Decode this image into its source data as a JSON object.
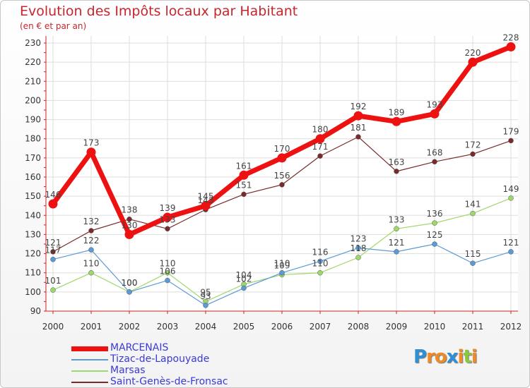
{
  "title": "Evolution des Impôts locaux par Habitant",
  "subtitle": "(en € et par an)",
  "logo": {
    "letters": [
      "P",
      "r",
      "o",
      "x",
      "i",
      "t",
      "i"
    ],
    "colors": [
      "#2d8fd5",
      "#f08a24",
      "#f08a24",
      "#2d8fd5",
      "#f08a24",
      "#8dc63f",
      "#f08a24"
    ]
  },
  "chart_data": {
    "type": "line",
    "x": [
      "2000",
      "2001",
      "2002",
      "2003",
      "2004",
      "2005",
      "2006",
      "2007",
      "2008",
      "2009",
      "2010",
      "2011",
      "2012"
    ],
    "ylim": [
      90,
      230
    ],
    "yticks": [
      90,
      100,
      110,
      120,
      130,
      140,
      150,
      160,
      170,
      180,
      190,
      200,
      210,
      220,
      230
    ],
    "grid": true,
    "legend_position": "bottom-left",
    "series": [
      {
        "name": "MARCENAIS",
        "color": "#ee1111",
        "values": [
          146,
          173,
          130,
          139,
          145,
          161,
          170,
          180,
          192,
          189,
          193,
          220,
          228
        ]
      },
      {
        "name": "Tizac-de-Lapouyade",
        "color": "#5b9bd5",
        "values": [
          117,
          122,
          100,
          106,
          93,
          102,
          110,
          116,
          123,
          121,
          125,
          115,
          121
        ]
      },
      {
        "name": "Marsas",
        "color": "#9ed86b",
        "values": [
          101,
          110,
          100,
          110,
          95,
          104,
          109,
          110,
          118,
          133,
          136,
          141,
          149
        ]
      },
      {
        "name": "Saint-Genès-de-Fronsac",
        "color": "#7a2a2a",
        "values": [
          121,
          132,
          138,
          133,
          143,
          151,
          156,
          171,
          181,
          163,
          168,
          172,
          179
        ]
      }
    ]
  }
}
